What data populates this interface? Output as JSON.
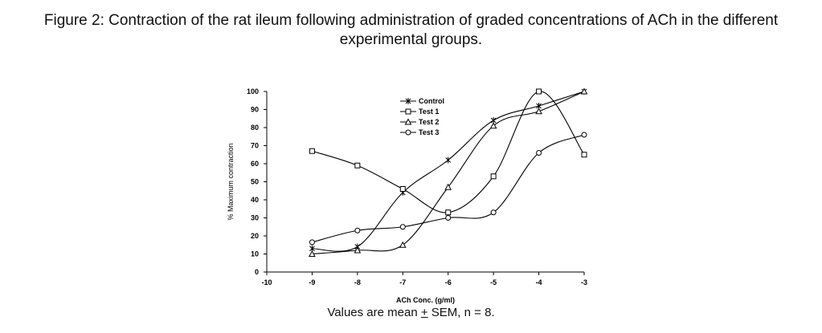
{
  "title_line1": "Figure 2: Contraction of the rat ileum following administration of graded concentrations of ACh in the different",
  "title_line2": "experimental groups.",
  "footer": {
    "prefix": "Values are mean ",
    "pm": "+",
    "suffix": " SEM, n = 8."
  },
  "chart_data": {
    "type": "line",
    "title": "",
    "xlabel": "ACh Conc. (g/ml)",
    "ylabel": "% Maximum contraction",
    "xlim": [
      -10,
      -3
    ],
    "ylim": [
      0,
      100
    ],
    "xticks": [
      -10,
      -9,
      -8,
      -7,
      -6,
      -5,
      -4,
      -3
    ],
    "yticks": [
      0,
      10,
      20,
      30,
      40,
      50,
      60,
      70,
      80,
      90,
      100
    ],
    "grid": false,
    "legend": "top-center",
    "x": [
      -9,
      -8,
      -7,
      -6,
      -5,
      -4,
      -3
    ],
    "series": [
      {
        "name": "Control",
        "marker": "star",
        "values": [
          13,
          14,
          44,
          62,
          84,
          92,
          100
        ]
      },
      {
        "name": "Test 1",
        "marker": "square",
        "values": [
          67,
          59,
          46,
          33,
          53,
          100,
          65
        ]
      },
      {
        "name": "Test 2",
        "marker": "triangle",
        "values": [
          10,
          12,
          15,
          47,
          81,
          89,
          100
        ]
      },
      {
        "name": "Test 3",
        "marker": "circle",
        "values": [
          16.5,
          23,
          25,
          30,
          33,
          66,
          76
        ]
      }
    ]
  }
}
